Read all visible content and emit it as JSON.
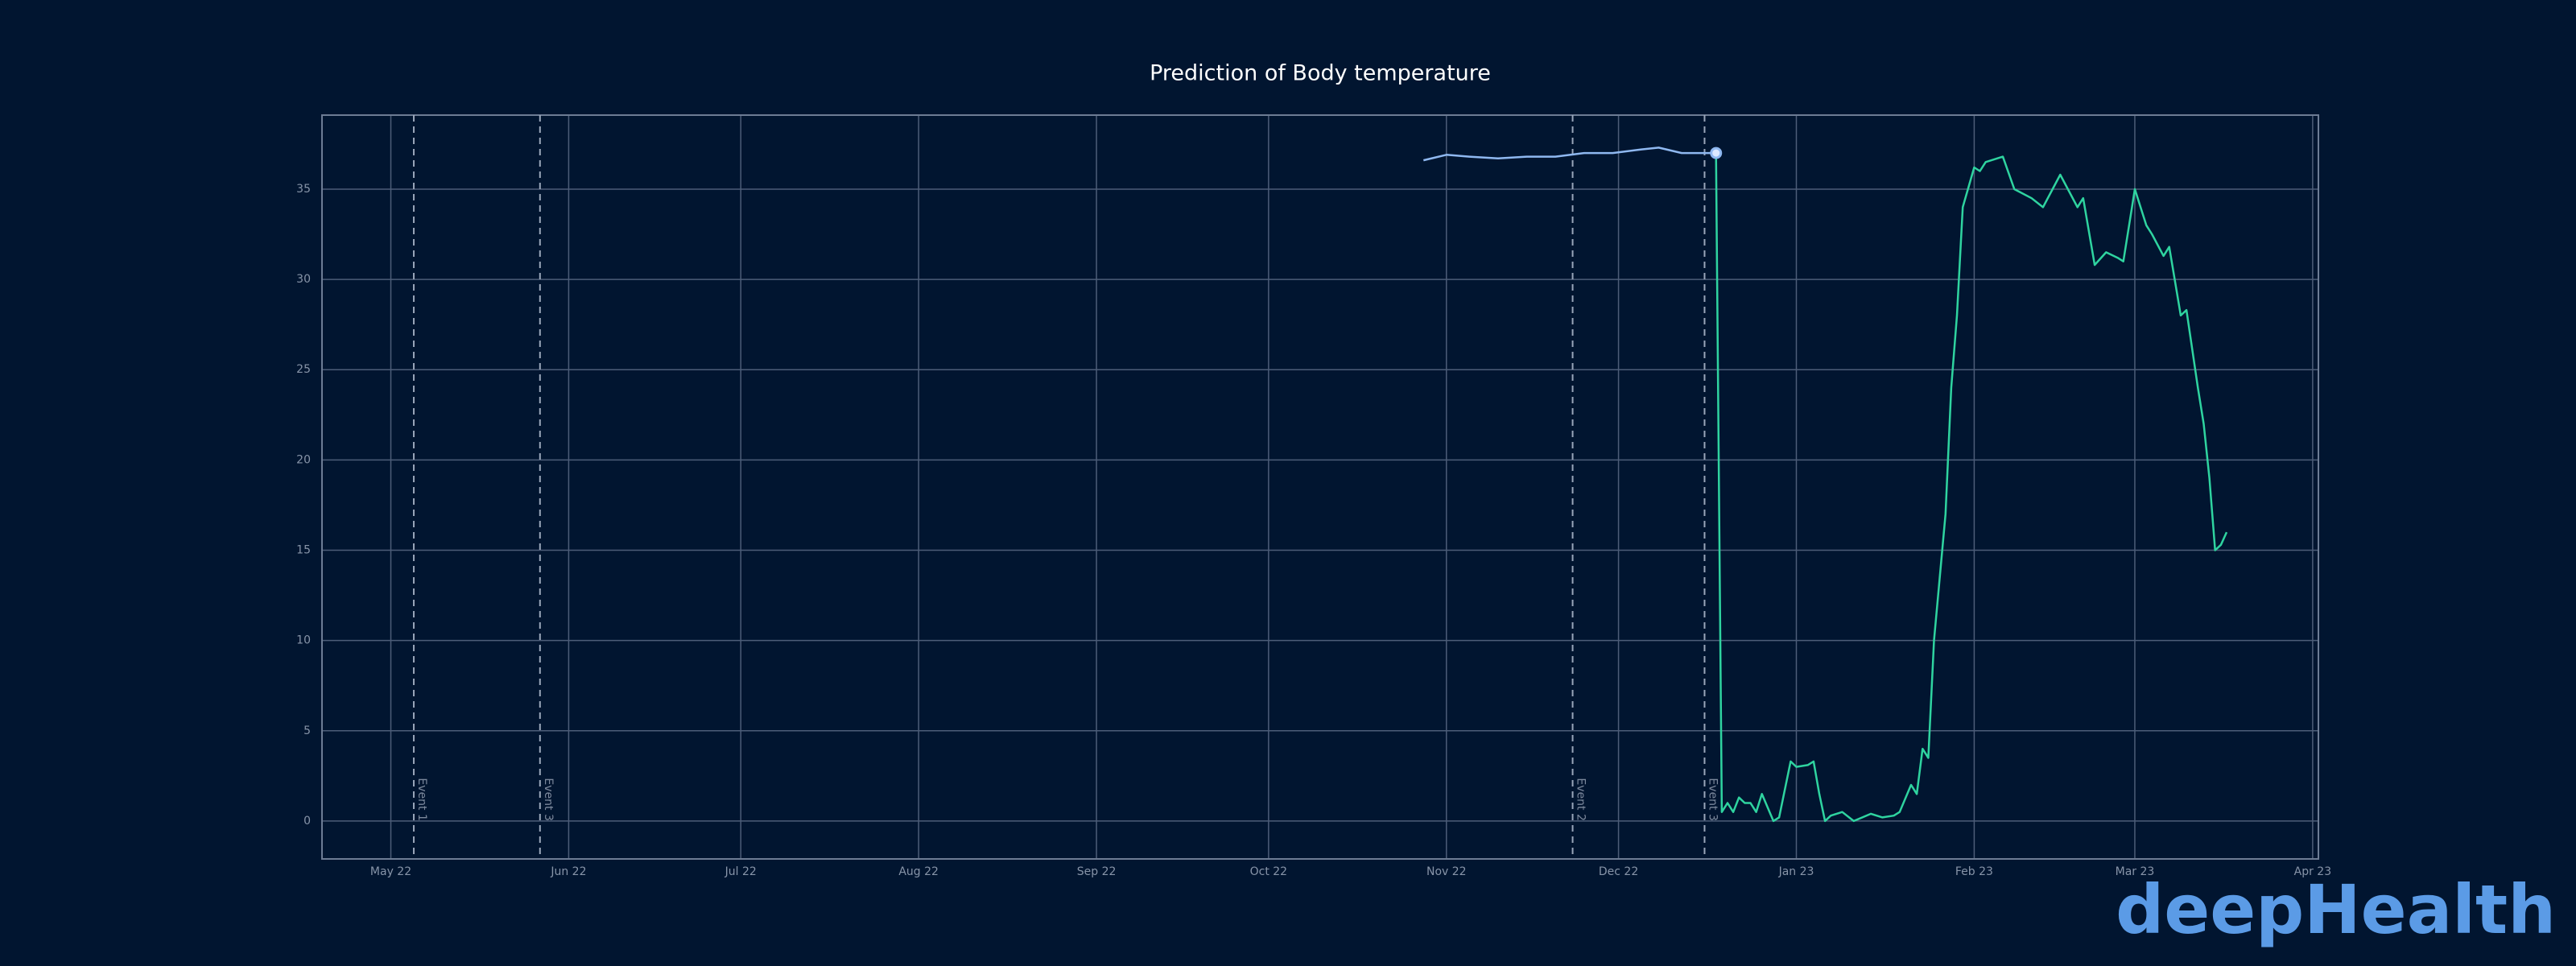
{
  "chart_data": {
    "type": "line",
    "title": "Prediction of Body temperature",
    "logo": "deepHealth",
    "xlim": [
      "2022-04-19",
      "2023-04-02"
    ],
    "xticks": [
      {
        "value": "2022-05-01",
        "label": "May 22"
      },
      {
        "value": "2022-06-01",
        "label": "Jun 22"
      },
      {
        "value": "2022-07-01",
        "label": "Jul 22"
      },
      {
        "value": "2022-08-01",
        "label": "Aug 22"
      },
      {
        "value": "2022-09-01",
        "label": "Sep 22"
      },
      {
        "value": "2022-10-01",
        "label": "Oct 22"
      },
      {
        "value": "2022-11-01",
        "label": "Nov 22"
      },
      {
        "value": "2022-12-01",
        "label": "Dec 22"
      },
      {
        "value": "2023-01-01",
        "label": "Jan 23"
      },
      {
        "value": "2023-02-01",
        "label": "Feb 23"
      },
      {
        "value": "2023-03-01",
        "label": "Mar 23"
      },
      {
        "value": "2023-04-01",
        "label": "Apr 23"
      }
    ],
    "ylim": [
      -2.1,
      39.1
    ],
    "yticks": [
      0,
      5,
      10,
      15,
      20,
      25,
      30,
      35
    ],
    "grid": true,
    "events": [
      {
        "x": "2022-05-05",
        "label": "Event 1"
      },
      {
        "x": "2022-05-27",
        "label": "Event 3"
      },
      {
        "x": "2022-11-23",
        "label": "Event 2"
      },
      {
        "x": "2022-12-16",
        "label": "Event 3"
      }
    ],
    "series": [
      {
        "color": "#8fb8f0",
        "x": [
          "2022-10-28",
          "2022-11-01",
          "2022-11-05",
          "2022-11-10",
          "2022-11-15",
          "2022-11-20",
          "2022-11-25",
          "2022-11-30",
          "2022-12-05",
          "2022-12-08",
          "2022-12-12",
          "2022-12-18"
        ],
        "values": [
          36.6,
          36.9,
          36.8,
          36.7,
          36.8,
          36.8,
          37.0,
          37.0,
          37.2,
          37.3,
          37.0,
          37.0
        ]
      },
      {
        "color": "#2fd4a0",
        "x": [
          "2022-12-18",
          "2022-12-19",
          "2022-12-20",
          "2022-12-21",
          "2022-12-22",
          "2022-12-23",
          "2022-12-24",
          "2022-12-25",
          "2022-12-26",
          "2022-12-28",
          "2022-12-29",
          "2022-12-31",
          "2023-01-01",
          "2023-01-03",
          "2023-01-04",
          "2023-01-05",
          "2023-01-06",
          "2023-01-07",
          "2023-01-09",
          "2023-01-11",
          "2023-01-14",
          "2023-01-16",
          "2023-01-18",
          "2023-01-19",
          "2023-01-21",
          "2023-01-22",
          "2023-01-23",
          "2023-01-24",
          "2023-01-25",
          "2023-01-27",
          "2023-01-28",
          "2023-01-29",
          "2023-01-30",
          "2023-02-01",
          "2023-02-02",
          "2023-02-03",
          "2023-02-06",
          "2023-02-08",
          "2023-02-11",
          "2023-02-13",
          "2023-02-16",
          "2023-02-19",
          "2023-02-20",
          "2023-02-22",
          "2023-02-24",
          "2023-02-26",
          "2023-02-27",
          "2023-03-01",
          "2023-03-03",
          "2023-03-04",
          "2023-03-06",
          "2023-03-07",
          "2023-03-09",
          "2023-03-10",
          "2023-03-12",
          "2023-03-13",
          "2023-03-14",
          "2023-03-15",
          "2023-03-16",
          "2023-03-17"
        ],
        "values": [
          37,
          0.5,
          1,
          0.5,
          1.3,
          1,
          1,
          0.5,
          1.5,
          0,
          0.2,
          3.3,
          3,
          3.1,
          3.3,
          1.5,
          0,
          0.3,
          0.5,
          0,
          0.4,
          0.2,
          0.3,
          0.5,
          2,
          1.5,
          4,
          3.5,
          10,
          17,
          24,
          28,
          34,
          36.2,
          36,
          36.5,
          36.8,
          35,
          34.5,
          34,
          35.8,
          34,
          34.5,
          30.8,
          31.5,
          31.2,
          31,
          35,
          33,
          32.5,
          31.3,
          31.8,
          28,
          28.3,
          24,
          22,
          19,
          15,
          15.3,
          16
        ]
      }
    ]
  }
}
